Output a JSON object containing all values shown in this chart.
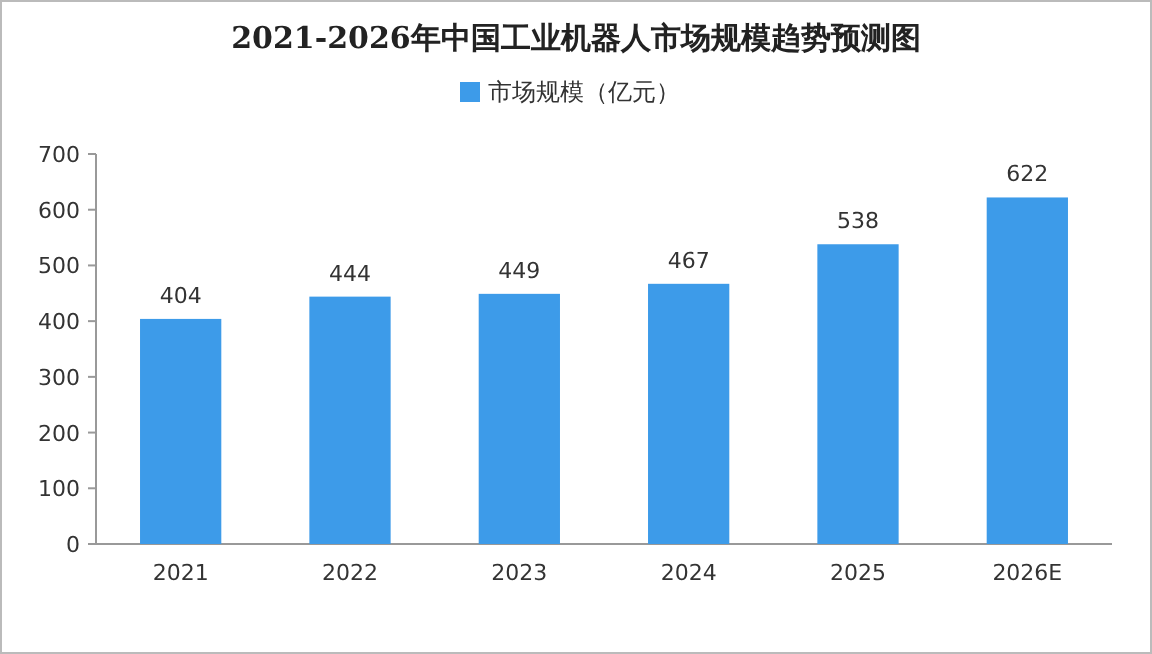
{
  "chart_data": {
    "type": "bar",
    "title": "2021-2026年中国工业机器人市场规模趋势预测图",
    "categories": [
      "2021",
      "2022",
      "2023",
      "2024",
      "2025",
      "2026E"
    ],
    "series": [
      {
        "name": "市场规模（亿元）",
        "color": "#3d9be9",
        "values": [
          404,
          444,
          449,
          467,
          538,
          622
        ]
      }
    ],
    "ylim": [
      0,
      700
    ],
    "yticks": [
      0,
      100,
      200,
      300,
      400,
      500,
      600,
      700
    ],
    "data_labels": true,
    "legend": "top",
    "grid": false
  }
}
